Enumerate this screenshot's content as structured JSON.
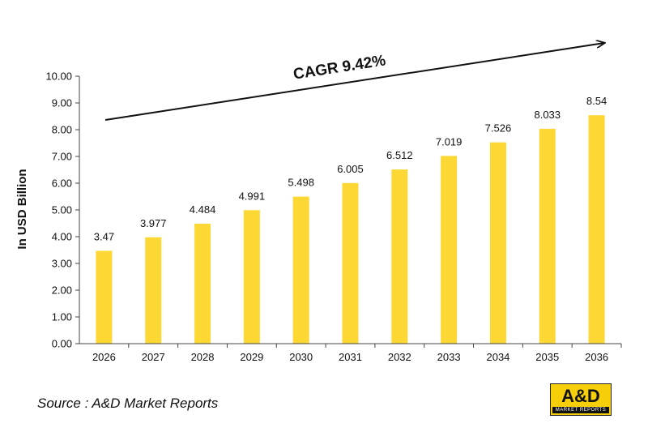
{
  "chart_data": {
    "type": "bar",
    "categories": [
      "2026",
      "2027",
      "2028",
      "2029",
      "2030",
      "2031",
      "2032",
      "2033",
      "2034",
      "2035",
      "2036"
    ],
    "values": [
      3.47,
      3.977,
      4.484,
      4.991,
      5.498,
      6.005,
      6.512,
      7.019,
      7.526,
      8.033,
      8.54
    ],
    "value_labels": [
      "3.47",
      "3.977",
      "4.484",
      "4.991",
      "5.498",
      "6.005",
      "6.512",
      "7.019",
      "7.526",
      "8.033",
      "8.54"
    ],
    "ylabel": "In USD Billion",
    "xlabel": "",
    "ylim": [
      0,
      10
    ],
    "yticks": [
      "0.00",
      "1.00",
      "2.00",
      "3.00",
      "4.00",
      "5.00",
      "6.00",
      "7.00",
      "8.00",
      "9.00",
      "10.00"
    ],
    "bar_color": "#fdd835",
    "annotation": "CAGR 9.42%",
    "grid": false,
    "legend": "none"
  },
  "source": "Source : A&D Market Reports",
  "logo": {
    "main": "A&D",
    "sub": "MARKET REPORTS",
    "color": "#f6cf0a"
  }
}
